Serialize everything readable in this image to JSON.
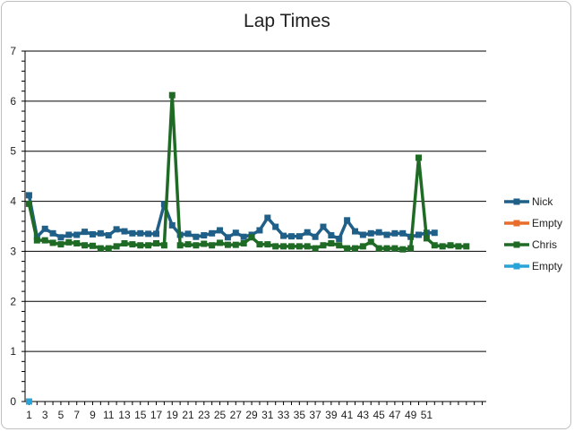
{
  "chart_data": {
    "type": "line",
    "title": "Lap Times",
    "xlabel": "",
    "ylabel": "",
    "ylim": [
      0,
      7
    ],
    "y_ticks": [
      0,
      1,
      2,
      3,
      4,
      5,
      6,
      7
    ],
    "x_tick_labels": [
      1,
      3,
      5,
      7,
      9,
      11,
      13,
      15,
      17,
      19,
      21,
      23,
      25,
      27,
      29,
      31,
      33,
      35,
      37,
      39,
      41,
      43,
      45,
      47,
      49,
      51
    ],
    "grid": true,
    "legend_position": "right",
    "series": [
      {
        "name": "Nick",
        "color": "#1f5f88",
        "x": [
          1,
          2,
          3,
          4,
          5,
          6,
          7,
          8,
          9,
          10,
          11,
          12,
          13,
          14,
          15,
          16,
          17,
          18,
          19,
          20,
          21,
          22,
          23,
          24,
          25,
          26,
          27,
          28,
          29,
          30,
          31,
          32,
          33,
          34,
          35,
          36,
          37,
          38,
          39,
          40,
          41,
          42,
          43,
          44,
          45,
          46,
          47,
          48,
          49,
          50,
          51,
          52
        ],
        "values": [
          4.12,
          3.29,
          3.45,
          3.36,
          3.28,
          3.33,
          3.33,
          3.39,
          3.34,
          3.36,
          3.32,
          3.44,
          3.4,
          3.36,
          3.36,
          3.35,
          3.35,
          3.94,
          3.52,
          3.33,
          3.35,
          3.29,
          3.32,
          3.36,
          3.42,
          3.28,
          3.37,
          3.29,
          3.33,
          3.42,
          3.67,
          3.49,
          3.31,
          3.3,
          3.3,
          3.38,
          3.29,
          3.49,
          3.32,
          3.25,
          3.62,
          3.4,
          3.33,
          3.36,
          3.38,
          3.33,
          3.36,
          3.36,
          3.29,
          3.33,
          3.37,
          3.37
        ]
      },
      {
        "name": "Empty",
        "color": "#e86c2a",
        "x": [],
        "values": []
      },
      {
        "name": "Chris",
        "color": "#1f6b25",
        "x": [
          1,
          2,
          3,
          4,
          5,
          6,
          7,
          8,
          9,
          10,
          11,
          12,
          13,
          14,
          15,
          16,
          17,
          18,
          19,
          20,
          21,
          22,
          23,
          24,
          25,
          26,
          27,
          28,
          29,
          30,
          31,
          32,
          33,
          34,
          35,
          36,
          37,
          38,
          39,
          40,
          41,
          42,
          43,
          44,
          45,
          46,
          47,
          48,
          49,
          50,
          51,
          52,
          53,
          54,
          55,
          56
        ],
        "values": [
          3.95,
          3.22,
          3.22,
          3.17,
          3.14,
          3.18,
          3.16,
          3.12,
          3.11,
          3.06,
          3.06,
          3.1,
          3.16,
          3.14,
          3.12,
          3.12,
          3.16,
          3.12,
          6.12,
          3.12,
          3.14,
          3.12,
          3.15,
          3.12,
          3.17,
          3.13,
          3.13,
          3.16,
          3.28,
          3.14,
          3.14,
          3.1,
          3.1,
          3.1,
          3.1,
          3.1,
          3.06,
          3.12,
          3.16,
          3.12,
          3.06,
          3.06,
          3.1,
          3.19,
          3.06,
          3.06,
          3.06,
          3.04,
          3.06,
          4.87,
          3.26,
          3.12,
          3.1,
          3.12,
          3.1,
          3.1
        ]
      },
      {
        "name": "Empty",
        "color": "#2aa3d9",
        "x": [
          1
        ],
        "values": [
          0
        ]
      }
    ]
  }
}
